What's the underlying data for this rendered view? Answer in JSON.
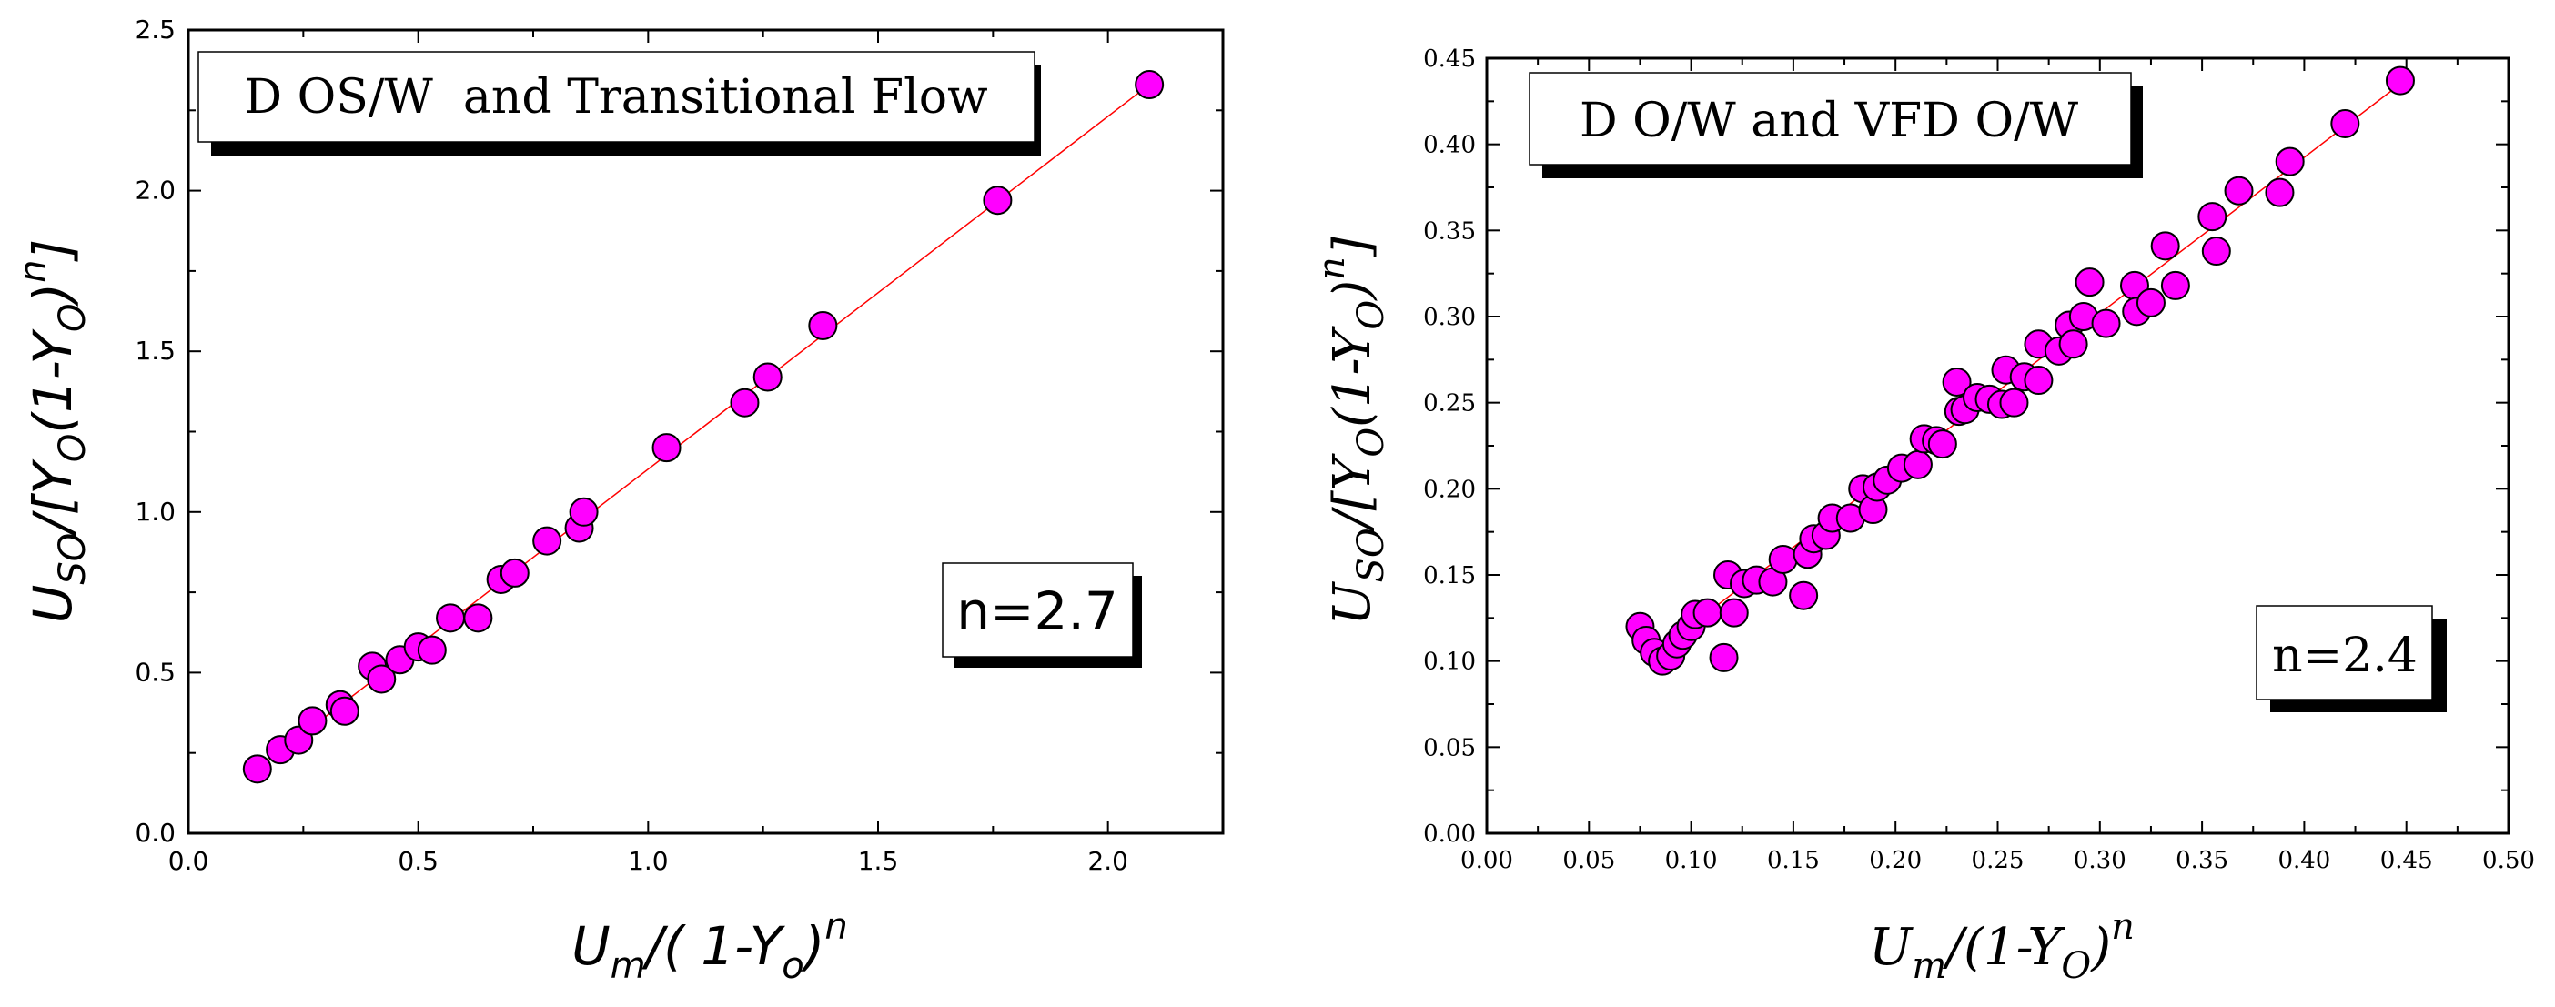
{
  "chart_data": [
    {
      "type": "scatter",
      "title_box": "D OS/W  and Transitional Flow",
      "n_label": "n=2.7",
      "xlabel": {
        "main": "U",
        "sub1": "m",
        "rest": "/( 1-Y",
        "sub2": "o",
        "close": ")",
        "sup": "n"
      },
      "ylabel": {
        "main": "U",
        "sub1": "SO",
        "rest1": "/[Y",
        "sub2": "O",
        "rest2": "(1-Y",
        "sub3": "O",
        "close": ")",
        "sup": "n",
        "end": "]"
      },
      "xlim": [
        0,
        2.25
      ],
      "ylim": [
        0,
        2.5
      ],
      "xticks": [
        "0.0",
        "0.5",
        "1.0",
        "1.5",
        "2.0"
      ],
      "yticks": [
        "0.0",
        "0.5",
        "1.0",
        "1.5",
        "2.0",
        "2.5"
      ],
      "fit_line": {
        "x": [
          0.15,
          2.09
        ],
        "y": [
          0.2,
          2.33
        ]
      },
      "points": {
        "x": [
          0.15,
          0.2,
          0.24,
          0.27,
          0.33,
          0.34,
          0.4,
          0.42,
          0.46,
          0.5,
          0.53,
          0.57,
          0.63,
          0.68,
          0.71,
          0.78,
          0.85,
          0.86,
          1.04,
          1.21,
          1.26,
          1.38,
          1.76,
          2.09
        ],
        "y": [
          0.2,
          0.26,
          0.29,
          0.35,
          0.4,
          0.38,
          0.52,
          0.48,
          0.54,
          0.58,
          0.57,
          0.67,
          0.67,
          0.79,
          0.81,
          0.91,
          0.95,
          1.0,
          1.2,
          1.34,
          1.42,
          1.58,
          1.97,
          2.33
        ]
      },
      "colors": {
        "marker": "#ff00ff",
        "line": "#ff0000"
      }
    },
    {
      "type": "scatter",
      "title_box": "D O/W and VFD O/W",
      "n_label": "n=2.4",
      "xlabel": {
        "main": "U",
        "sub1": "m",
        "rest": "/(1-Y",
        "sub2": "O",
        "close": ")",
        "sup": "n"
      },
      "ylabel": {
        "main": "U",
        "sub1": "SO",
        "rest1": "/[Y",
        "sub2": "O",
        "rest2": "(1-Y",
        "sub3": "O",
        "close": ")",
        "sup": "n",
        "end": "]"
      },
      "xlim": [
        0,
        0.5
      ],
      "ylim": [
        0,
        0.45
      ],
      "xticks": [
        "0.00",
        "0.05",
        "0.10",
        "0.15",
        "0.20",
        "0.25",
        "0.30",
        "0.35",
        "0.40",
        "0.45",
        "0.50"
      ],
      "yticks": [
        "0.00",
        "0.05",
        "0.10",
        "0.15",
        "0.20",
        "0.25",
        "0.30",
        "0.35",
        "0.40",
        "0.45"
      ],
      "fit_line": {
        "x": [
          0.077,
          0.447
        ],
        "y": [
          0.1,
          0.435
        ]
      },
      "points": {
        "x": [
          0.075,
          0.078,
          0.082,
          0.086,
          0.09,
          0.093,
          0.096,
          0.1,
          0.102,
          0.108,
          0.116,
          0.118,
          0.121,
          0.126,
          0.132,
          0.14,
          0.145,
          0.155,
          0.157,
          0.16,
          0.166,
          0.169,
          0.178,
          0.184,
          0.189,
          0.191,
          0.196,
          0.203,
          0.211,
          0.214,
          0.22,
          0.223,
          0.23,
          0.231,
          0.234,
          0.24,
          0.246,
          0.252,
          0.254,
          0.258,
          0.263,
          0.27,
          0.27,
          0.28,
          0.285,
          0.287,
          0.292,
          0.295,
          0.303,
          0.317,
          0.318,
          0.325,
          0.332,
          0.337,
          0.355,
          0.357,
          0.368,
          0.388,
          0.393,
          0.42,
          0.447
        ],
        "y": [
          0.12,
          0.112,
          0.105,
          0.1,
          0.103,
          0.11,
          0.115,
          0.12,
          0.127,
          0.128,
          0.102,
          0.15,
          0.128,
          0.145,
          0.147,
          0.146,
          0.159,
          0.138,
          0.162,
          0.171,
          0.173,
          0.183,
          0.183,
          0.2,
          0.188,
          0.201,
          0.205,
          0.212,
          0.214,
          0.229,
          0.228,
          0.226,
          0.262,
          0.245,
          0.246,
          0.253,
          0.252,
          0.249,
          0.269,
          0.25,
          0.265,
          0.263,
          0.284,
          0.28,
          0.295,
          0.284,
          0.3,
          0.32,
          0.296,
          0.318,
          0.303,
          0.308,
          0.341,
          0.318,
          0.358,
          0.338,
          0.373,
          0.372,
          0.39,
          0.412,
          0.437
        ]
      },
      "colors": {
        "marker": "#ff00ff",
        "line": "#ff0000"
      }
    }
  ]
}
